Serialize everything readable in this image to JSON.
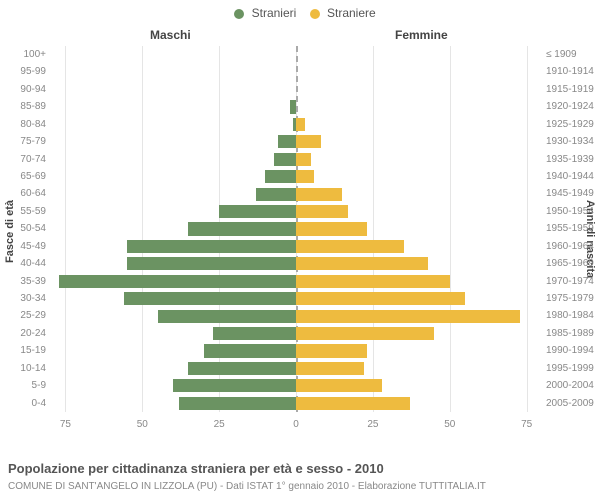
{
  "legend": {
    "male": {
      "label": "Stranieri",
      "color": "#6b9362"
    },
    "female": {
      "label": "Straniere",
      "color": "#eebb3f"
    }
  },
  "panels": {
    "left": "Maschi",
    "right": "Femmine"
  },
  "axes": {
    "left_title": "Fasce di età",
    "right_title": "Anni di nascita",
    "x_ticks": [
      75,
      50,
      25,
      0,
      25,
      50,
      75
    ],
    "x_max": 80
  },
  "chart": {
    "type": "population-pyramid",
    "background_color": "#ffffff",
    "grid_color": "#e5e5e5",
    "centerline_color": "#aaaaaa",
    "bar_border": "#ffffff",
    "label_color": "#888888",
    "axis_label_fontsize": 10,
    "panel_title_fontsize": 12
  },
  "rows": [
    {
      "age": "100+",
      "birth": "≤ 1909",
      "m": 0,
      "f": 0
    },
    {
      "age": "95-99",
      "birth": "1910-1914",
      "m": 0,
      "f": 0
    },
    {
      "age": "90-94",
      "birth": "1915-1919",
      "m": 0,
      "f": 0
    },
    {
      "age": "85-89",
      "birth": "1920-1924",
      "m": 2,
      "f": 0
    },
    {
      "age": "80-84",
      "birth": "1925-1929",
      "m": 1,
      "f": 3
    },
    {
      "age": "75-79",
      "birth": "1930-1934",
      "m": 6,
      "f": 8
    },
    {
      "age": "70-74",
      "birth": "1935-1939",
      "m": 7,
      "f": 5
    },
    {
      "age": "65-69",
      "birth": "1940-1944",
      "m": 10,
      "f": 6
    },
    {
      "age": "60-64",
      "birth": "1945-1949",
      "m": 13,
      "f": 15
    },
    {
      "age": "55-59",
      "birth": "1950-1954",
      "m": 25,
      "f": 17
    },
    {
      "age": "50-54",
      "birth": "1955-1959",
      "m": 35,
      "f": 23
    },
    {
      "age": "45-49",
      "birth": "1960-1964",
      "m": 55,
      "f": 35
    },
    {
      "age": "40-44",
      "birth": "1965-1969",
      "m": 55,
      "f": 43
    },
    {
      "age": "35-39",
      "birth": "1970-1974",
      "m": 77,
      "f": 50
    },
    {
      "age": "30-34",
      "birth": "1975-1979",
      "m": 56,
      "f": 55
    },
    {
      "age": "25-29",
      "birth": "1980-1984",
      "m": 45,
      "f": 73
    },
    {
      "age": "20-24",
      "birth": "1985-1989",
      "m": 27,
      "f": 45
    },
    {
      "age": "15-19",
      "birth": "1990-1994",
      "m": 30,
      "f": 23
    },
    {
      "age": "10-14",
      "birth": "1995-1999",
      "m": 35,
      "f": 22
    },
    {
      "age": "5-9",
      "birth": "2000-2004",
      "m": 40,
      "f": 28
    },
    {
      "age": "0-4",
      "birth": "2005-2009",
      "m": 38,
      "f": 37
    }
  ],
  "title": "Popolazione per cittadinanza straniera per età e sesso - 2010",
  "subtitle": "COMUNE DI SANT'ANGELO IN LIZZOLA (PU) - Dati ISTAT 1° gennaio 2010 - Elaborazione TUTTITALIA.IT"
}
